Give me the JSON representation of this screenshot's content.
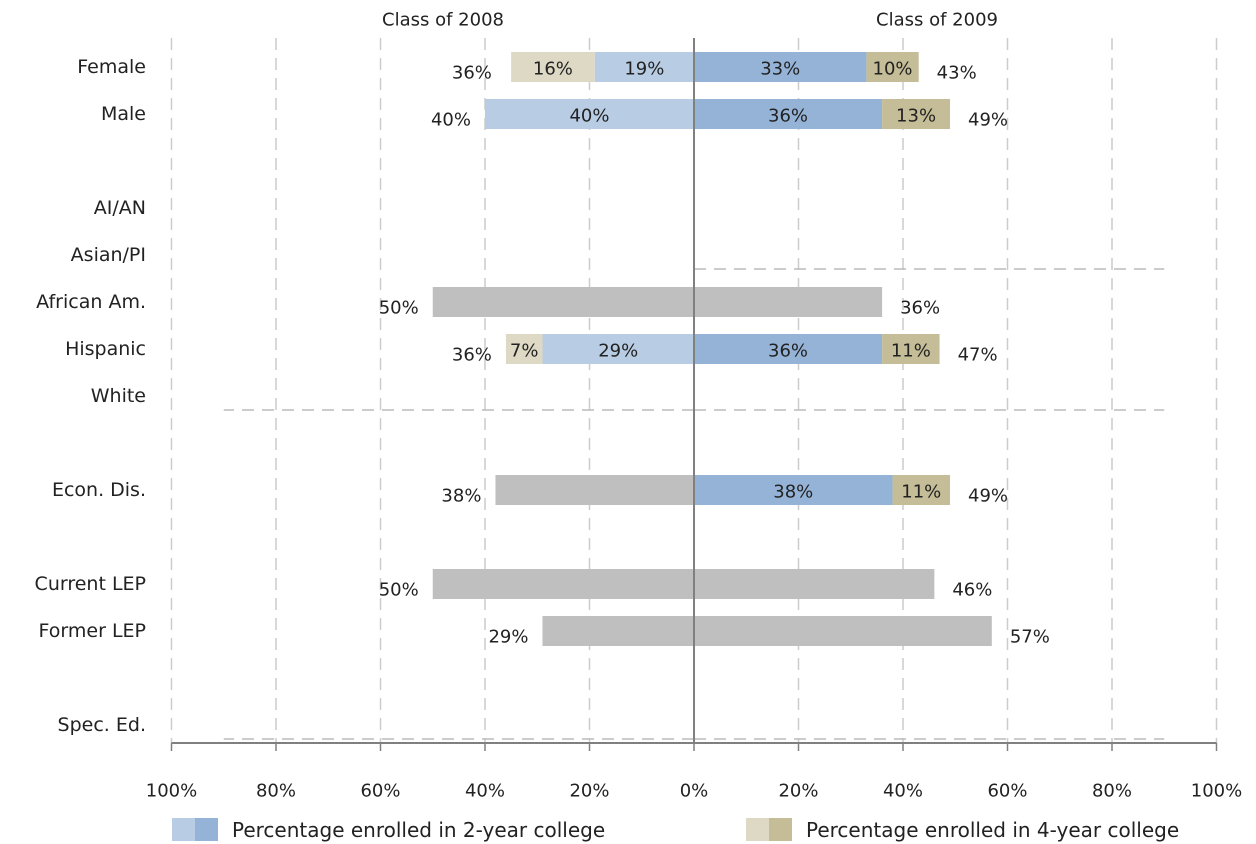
{
  "chart_data": {
    "type": "bar",
    "orientation": "horizontal-diverging",
    "panels": [
      "Class of 2008",
      "Class of 2009"
    ],
    "xlim": [
      -100,
      100
    ],
    "x_ticks": [
      "100%",
      "80%",
      "60%",
      "40%",
      "20%",
      "0%",
      "20%",
      "40%",
      "60%",
      "80%",
      "100%"
    ],
    "categories": [
      "Female",
      "Male",
      "AI/AN",
      "Asian/PI",
      "African Am.",
      "Hispanic",
      "White",
      "Econ. Dis.",
      "Current LEP",
      "Former LEP",
      "Spec. Ed."
    ],
    "rows": [
      {
        "label": "Female",
        "y": 1,
        "left": {
          "two": 19,
          "four": 16,
          "gray": 0,
          "two_label": "19%",
          "four_label": "16%",
          "total": 36,
          "total_label": "36%"
        },
        "right": {
          "two": 33,
          "four": 10,
          "gray": 0,
          "two_label": "33%",
          "four_label": "10%",
          "total": 43,
          "total_label": "43%"
        }
      },
      {
        "label": "Male",
        "y": 2,
        "left": {
          "two": 40,
          "four": 0,
          "gray": 0,
          "two_label": "40%",
          "four_label": "",
          "total": 40,
          "total_label": "40%"
        },
        "right": {
          "two": 36,
          "four": 13,
          "gray": 0,
          "two_label": "36%",
          "four_label": "13%",
          "total": 49,
          "total_label": "49%"
        }
      },
      {
        "label": "AI/AN",
        "y": 4,
        "left": null,
        "right": null
      },
      {
        "label": "Asian/PI",
        "y": 5,
        "left": null,
        "right": {
          "dashed": true,
          "dash_to": 90
        }
      },
      {
        "label": "African Am.",
        "y": 6,
        "left": {
          "two": 0,
          "four": 0,
          "gray": 50,
          "two_label": "",
          "four_label": "",
          "total": 50,
          "total_label": "50%"
        },
        "right": {
          "two": 0,
          "four": 0,
          "gray": 36,
          "two_label": "",
          "four_label": "",
          "total": 36,
          "total_label": "36%"
        }
      },
      {
        "label": "Hispanic",
        "y": 7,
        "left": {
          "two": 29,
          "four": 7,
          "gray": 0,
          "two_label": "29%",
          "four_label": "7%",
          "total": 36,
          "total_label": "36%"
        },
        "right": {
          "two": 36,
          "four": 11,
          "gray": 0,
          "two_label": "36%",
          "four_label": "11%",
          "total": 47,
          "total_label": "47%"
        }
      },
      {
        "label": "White",
        "y": 8,
        "left": {
          "dashed": true,
          "dash_to": 90
        },
        "right": {
          "dashed": true,
          "dash_to": 90
        }
      },
      {
        "label": "Econ. Dis.",
        "y": 10,
        "left": {
          "two": 0,
          "four": 0,
          "gray": 38,
          "two_label": "",
          "four_label": "",
          "total": 38,
          "total_label": "38%"
        },
        "right": {
          "two": 38,
          "four": 11,
          "gray": 0,
          "two_label": "38%",
          "four_label": "11%",
          "total": 49,
          "total_label": "49%"
        }
      },
      {
        "label": "Current LEP",
        "y": 12,
        "left": {
          "two": 0,
          "four": 0,
          "gray": 50,
          "two_label": "",
          "four_label": "",
          "total": 50,
          "total_label": "50%"
        },
        "right": {
          "two": 0,
          "four": 0,
          "gray": 46,
          "two_label": "",
          "four_label": "",
          "total": 46,
          "total_label": "46%"
        }
      },
      {
        "label": "Former LEP",
        "y": 13,
        "left": {
          "two": 0,
          "four": 0,
          "gray": 29,
          "two_label": "",
          "four_label": "",
          "total": 29,
          "total_label": "29%"
        },
        "right": {
          "two": 0,
          "four": 0,
          "gray": 57,
          "two_label": "",
          "four_label": "",
          "total": 57,
          "total_label": "57%"
        }
      },
      {
        "label": "Spec. Ed.",
        "y": 15,
        "left": {
          "dashed": true,
          "dash_to": 90
        },
        "right": {
          "dashed": true,
          "dash_to": 90
        }
      }
    ],
    "legend": {
      "placement": "bottom",
      "items": [
        {
          "name": "Percentage enrolled in 2-year college",
          "colors": [
            "#b8cce4",
            "#95b3d7"
          ]
        },
        {
          "name": "Percentage enrolled in 4-year college",
          "colors": [
            "#ddd9c4",
            "#c4bd97"
          ]
        }
      ]
    },
    "colors": {
      "left_two": "#b8cce4",
      "right_two": "#95b3d7",
      "left_four": "#ddd9c4",
      "right_four": "#c4bd97",
      "gray": "#bfbfbf",
      "grid": "#cccccc",
      "axis": "#808080"
    },
    "grid": true
  }
}
